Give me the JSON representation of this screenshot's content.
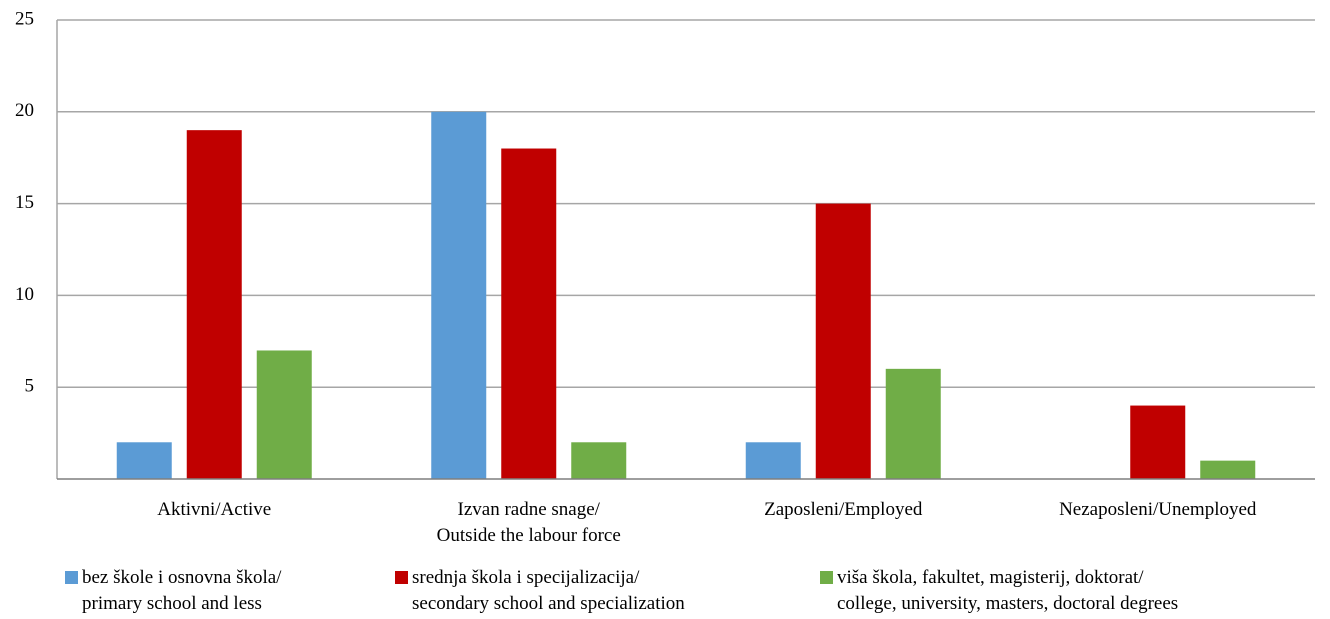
{
  "chart_data": {
    "type": "bar",
    "categories": [
      "Aktivni/Active",
      "Izvan radne snage/\nOutside the labour force",
      "Zaposleni/Employed",
      "Nezaposleni/Unemployed"
    ],
    "series": [
      {
        "name": "bez škole i osnovna škola/\nprimary school and less",
        "color": "#5b9bd5",
        "values": [
          2,
          20,
          2,
          0
        ]
      },
      {
        "name": "srednja škola i specijalizacija/\nsecondary school and specialization",
        "color": "#c00000",
        "values": [
          19,
          18,
          15,
          4
        ]
      },
      {
        "name": "viša škola, fakultet, magisterij, doktorat/\ncollege, university, masters, doctoral degrees",
        "color": "#70ad47",
        "values": [
          7,
          2,
          6,
          1
        ]
      }
    ],
    "ylim": [
      0,
      25
    ],
    "yticks": [
      5,
      10,
      15,
      20,
      25
    ],
    "grid": true,
    "legend": "bottom"
  }
}
